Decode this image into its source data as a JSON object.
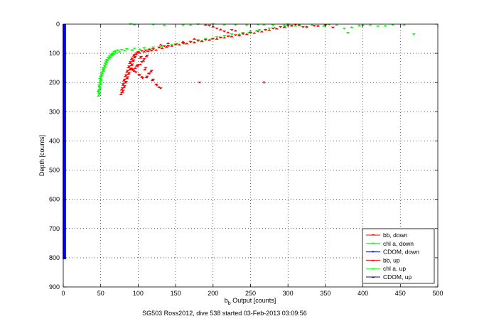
{
  "chart_data": {
    "type": "scatter",
    "title": "",
    "xlabel_main": "b",
    "xlabel_sub": "b",
    "xlabel_rest": " Output [counts]",
    "ylabel": "Depth [counts]",
    "caption": "SG503 Ross2012, dive 538 started 03-Feb-2013 03:09:56",
    "xlim": [
      0,
      500
    ],
    "ylim": [
      0,
      900
    ],
    "y_reversed": true,
    "grid": true,
    "x_ticks": [
      "0",
      "50",
      "100",
      "150",
      "200",
      "250",
      "300",
      "350",
      "400",
      "450",
      "500"
    ],
    "y_ticks": [
      "0",
      "100",
      "200",
      "300",
      "400",
      "500",
      "600",
      "700",
      "800",
      "900"
    ],
    "legend_position": "bottom-right",
    "legend": [
      {
        "label": "bb, down",
        "color": "#ff0000",
        "marker": "triangle-down"
      },
      {
        "label": "chl a, down",
        "color": "#00ff00",
        "marker": "triangle-down"
      },
      {
        "label": "CDOM, down",
        "color": "#0000ff",
        "marker": "triangle-down"
      },
      {
        "label": "bb, up",
        "color": "#ff0000",
        "marker": "triangle-up"
      },
      {
        "label": "chl a, up",
        "color": "#00ff00",
        "marker": "triangle-up"
      },
      {
        "label": "CDOM, up",
        "color": "#0000ff",
        "marker": "triangle-up"
      }
    ],
    "series": [
      {
        "name": "CDOM, down",
        "color": "#0000ff",
        "marker": "triangle-down",
        "x": 0,
        "depth_range": [
          0,
          805
        ]
      },
      {
        "name": "CDOM, up",
        "color": "#0000ff",
        "marker": "triangle-up",
        "x": 0,
        "depth_range": [
          0,
          805
        ]
      },
      {
        "name": "chl a, down",
        "color": "#00ff00",
        "marker": "triangle-down",
        "points": [
          [
            48,
            240
          ],
          [
            47,
            232
          ],
          [
            48,
            225
          ],
          [
            49,
            218
          ],
          [
            48,
            210
          ],
          [
            49,
            202
          ],
          [
            50,
            195
          ],
          [
            49,
            188
          ],
          [
            50,
            180
          ],
          [
            51,
            172
          ],
          [
            52,
            165
          ],
          [
            53,
            158
          ],
          [
            53,
            150
          ],
          [
            55,
            142
          ],
          [
            56,
            135
          ],
          [
            57,
            128
          ],
          [
            58,
            122
          ],
          [
            60,
            115
          ],
          [
            62,
            110
          ],
          [
            64,
            104
          ],
          [
            66,
            100
          ],
          [
            68,
            95
          ],
          [
            70,
            92
          ],
          [
            73,
            90
          ],
          [
            78,
            88
          ],
          [
            85,
            86
          ],
          [
            95,
            84
          ],
          [
            108,
            82
          ],
          [
            120,
            80
          ],
          [
            132,
            76
          ],
          [
            145,
            72
          ],
          [
            152,
            68
          ],
          [
            160,
            65
          ],
          [
            170,
            60
          ],
          [
            180,
            55
          ],
          [
            190,
            50
          ],
          [
            205,
            45
          ],
          [
            215,
            40
          ],
          [
            225,
            35
          ],
          [
            240,
            30
          ],
          [
            250,
            25
          ],
          [
            262,
            20
          ],
          [
            275,
            15
          ],
          [
            290,
            10
          ],
          [
            305,
            5
          ],
          [
            315,
            3
          ],
          [
            325,
            12
          ],
          [
            340,
            8
          ],
          [
            355,
            2
          ],
          [
            375,
            15
          ],
          [
            380,
            30
          ],
          [
            400,
            5
          ],
          [
            420,
            8
          ],
          [
            440,
            3
          ],
          [
            468,
            35
          ],
          [
            90,
            0
          ],
          [
            120,
            2
          ],
          [
            160,
            4
          ],
          [
            180,
            1
          ],
          [
            200,
            0
          ],
          [
            230,
            3
          ],
          [
            260,
            2
          ],
          [
            280,
            4
          ],
          [
            300,
            1
          ]
        ]
      },
      {
        "name": "chl a, up",
        "color": "#00ff00",
        "marker": "triangle-up",
        "points": [
          [
            47,
            245
          ],
          [
            48,
            236
          ],
          [
            47,
            228
          ],
          [
            49,
            220
          ],
          [
            48,
            212
          ],
          [
            50,
            205
          ],
          [
            49,
            198
          ],
          [
            51,
            190
          ],
          [
            50,
            183
          ],
          [
            51,
            175
          ],
          [
            52,
            168
          ],
          [
            54,
            160
          ],
          [
            54,
            152
          ],
          [
            56,
            145
          ],
          [
            57,
            138
          ],
          [
            58,
            130
          ],
          [
            59,
            124
          ],
          [
            61,
            118
          ],
          [
            63,
            112
          ],
          [
            65,
            106
          ],
          [
            67,
            102
          ],
          [
            70,
            98
          ],
          [
            75,
            94
          ],
          [
            82,
            90
          ],
          [
            92,
            88
          ],
          [
            102,
            86
          ],
          [
            115,
            84
          ],
          [
            128,
            80
          ],
          [
            140,
            75
          ],
          [
            150,
            70
          ],
          [
            162,
            66
          ],
          [
            175,
            62
          ],
          [
            185,
            56
          ],
          [
            198,
            50
          ],
          [
            210,
            46
          ],
          [
            222,
            40
          ],
          [
            235,
            34
          ],
          [
            248,
            28
          ],
          [
            258,
            22
          ],
          [
            270,
            18
          ],
          [
            282,
            12
          ],
          [
            296,
            8
          ],
          [
            310,
            4
          ],
          [
            332,
            2
          ],
          [
            348,
            6
          ],
          [
            365,
            2
          ],
          [
            385,
            10
          ],
          [
            395,
            4
          ],
          [
            410,
            2
          ],
          [
            430,
            5
          ],
          [
            455,
            2
          ],
          [
            95,
            1
          ],
          [
            135,
            3
          ],
          [
            170,
            2
          ],
          [
            215,
            1
          ],
          [
            245,
            2
          ],
          [
            268,
            1
          ],
          [
            295,
            3
          ]
        ]
      },
      {
        "name": "bb, down",
        "color": "#ff0000",
        "marker": "triangle-down",
        "points": [
          [
            78,
            235
          ],
          [
            80,
            228
          ],
          [
            79,
            220
          ],
          [
            82,
            212
          ],
          [
            80,
            205
          ],
          [
            84,
            198
          ],
          [
            82,
            190
          ],
          [
            86,
            182
          ],
          [
            84,
            175
          ],
          [
            88,
            168
          ],
          [
            86,
            160
          ],
          [
            90,
            152
          ],
          [
            88,
            145
          ],
          [
            92,
            138
          ],
          [
            90,
            130
          ],
          [
            94,
            124
          ],
          [
            92,
            118
          ],
          [
            96,
            112
          ],
          [
            95,
            106
          ],
          [
            98,
            100
          ],
          [
            100,
            96
          ],
          [
            105,
            92
          ],
          [
            110,
            90
          ],
          [
            115,
            88
          ],
          [
            120,
            86
          ],
          [
            128,
            80
          ],
          [
            135,
            76
          ],
          [
            140,
            74
          ],
          [
            150,
            70
          ],
          [
            160,
            66
          ],
          [
            170,
            62
          ],
          [
            180,
            58
          ],
          [
            190,
            54
          ],
          [
            200,
            50
          ],
          [
            210,
            46
          ],
          [
            220,
            42
          ],
          [
            230,
            38
          ],
          [
            240,
            34
          ],
          [
            250,
            30
          ],
          [
            260,
            25
          ],
          [
            270,
            20
          ],
          [
            280,
            15
          ],
          [
            290,
            10
          ],
          [
            300,
            5
          ],
          [
            310,
            2
          ],
          [
            320,
            10
          ],
          [
            335,
            6
          ],
          [
            350,
            4
          ],
          [
            360,
            12
          ],
          [
            195,
            5
          ],
          [
            205,
            15
          ],
          [
            215,
            25
          ],
          [
            225,
            20
          ],
          [
            182,
            200
          ],
          [
            100,
            140
          ],
          [
            105,
            130
          ],
          [
            110,
            150
          ],
          [
            108,
            120
          ],
          [
            115,
            170
          ],
          [
            112,
            180
          ],
          [
            120,
            190
          ],
          [
            118,
            160
          ],
          [
            125,
            210
          ],
          [
            130,
            220
          ],
          [
            102,
            175
          ],
          [
            106,
            185
          ],
          [
            97,
            165
          ],
          [
            93,
            158
          ],
          [
            99,
            145
          ],
          [
            104,
            112
          ],
          [
            112,
            108
          ]
        ]
      },
      {
        "name": "bb, up",
        "color": "#ff0000",
        "marker": "triangle-up",
        "points": [
          [
            77,
            240
          ],
          [
            79,
            232
          ],
          [
            78,
            224
          ],
          [
            81,
            216
          ],
          [
            80,
            208
          ],
          [
            83,
            200
          ],
          [
            81,
            193
          ],
          [
            85,
            185
          ],
          [
            83,
            178
          ],
          [
            87,
            170
          ],
          [
            85,
            163
          ],
          [
            89,
            155
          ],
          [
            87,
            148
          ],
          [
            91,
            140
          ],
          [
            89,
            133
          ],
          [
            93,
            126
          ],
          [
            91,
            120
          ],
          [
            95,
            114
          ],
          [
            94,
            108
          ],
          [
            97,
            102
          ],
          [
            102,
            98
          ],
          [
            108,
            94
          ],
          [
            113,
            92
          ],
          [
            118,
            90
          ],
          [
            124,
            88
          ],
          [
            132,
            82
          ],
          [
            138,
            78
          ],
          [
            145,
            74
          ],
          [
            155,
            70
          ],
          [
            165,
            66
          ],
          [
            175,
            62
          ],
          [
            185,
            58
          ],
          [
            195,
            54
          ],
          [
            205,
            50
          ],
          [
            215,
            46
          ],
          [
            225,
            42
          ],
          [
            235,
            38
          ],
          [
            245,
            34
          ],
          [
            255,
            30
          ],
          [
            265,
            25
          ],
          [
            275,
            20
          ],
          [
            285,
            15
          ],
          [
            295,
            10
          ],
          [
            305,
            5
          ],
          [
            315,
            3
          ],
          [
            325,
            8
          ],
          [
            340,
            5
          ],
          [
            190,
            2
          ],
          [
            200,
            8
          ],
          [
            210,
            18
          ],
          [
            220,
            28
          ],
          [
            230,
            22
          ],
          [
            268,
            198
          ],
          [
            96,
            150
          ],
          [
            103,
            138
          ],
          [
            109,
            155
          ],
          [
            107,
            125
          ],
          [
            114,
            168
          ],
          [
            111,
            182
          ],
          [
            119,
            192
          ],
          [
            117,
            162
          ],
          [
            124,
            205
          ],
          [
            128,
            215
          ],
          [
            101,
            172
          ],
          [
            105,
            180
          ],
          [
            95,
            160
          ],
          [
            92,
            152
          ],
          [
            98,
            142
          ],
          [
            103,
            115
          ],
          [
            111,
            110
          ],
          [
            130,
            70
          ],
          [
            140,
            65
          ],
          [
            160,
            60
          ],
          [
            175,
            50
          ]
        ]
      }
    ]
  }
}
